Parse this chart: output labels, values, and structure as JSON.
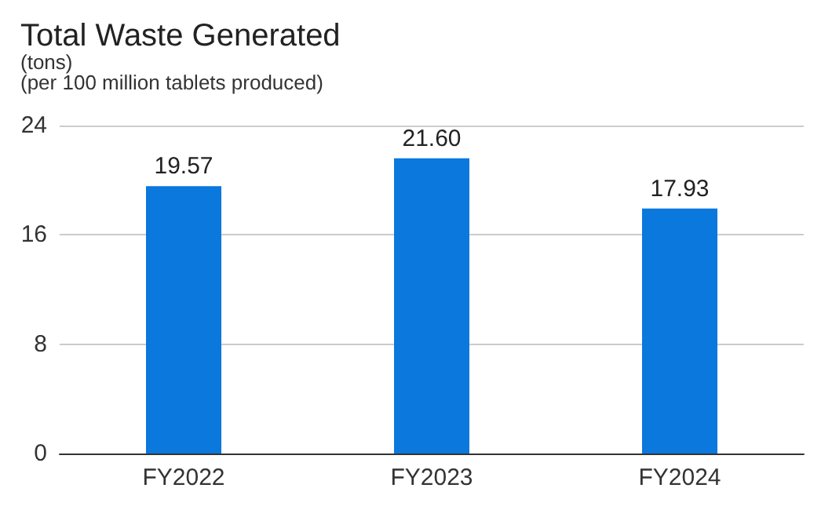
{
  "chart_data": {
    "type": "bar",
    "title": "Total Waste Generated",
    "subtitle": "(tons)",
    "annotations": [
      "(per 100 million tablets produced)"
    ],
    "categories": [
      "FY2022",
      "FY2023",
      "FY2024"
    ],
    "values": [
      19.57,
      21.6,
      17.93
    ],
    "value_labels": [
      "19.57",
      "21.60",
      "17.93"
    ],
    "color": "#0a78dc",
    "ylim": [
      0,
      24
    ],
    "yticks": [
      0,
      8,
      16,
      24
    ],
    "grid": "y"
  }
}
